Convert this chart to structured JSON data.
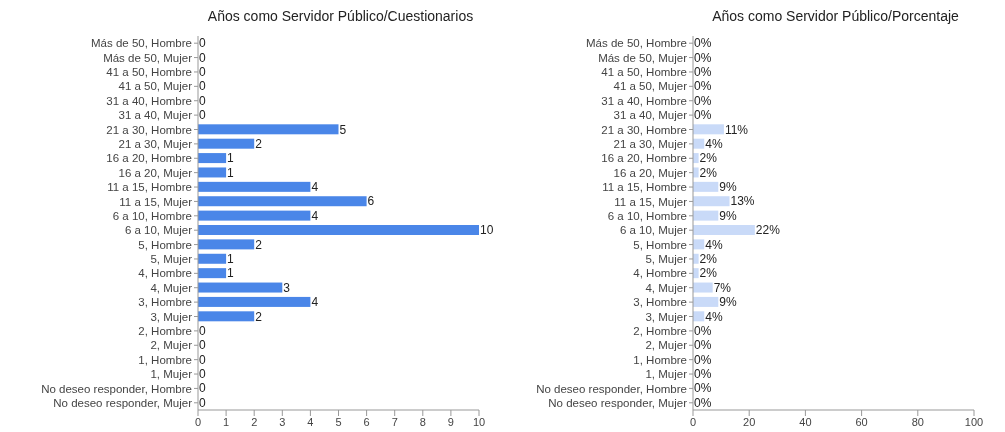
{
  "chart_data": [
    {
      "type": "bar",
      "orientation": "horizontal",
      "title": "Años como Servidor Público/Cuestionarios",
      "categories": [
        "Más de 50, Hombre",
        "Más de 50, Mujer",
        "41 a 50, Hombre",
        "41 a 50, Mujer",
        "31 a 40, Hombre",
        "31 a 40, Mujer",
        "21 a 30, Hombre",
        "21 a 30, Mujer",
        "16 a 20, Hombre",
        "16 a 20, Mujer",
        "11 a 15, Hombre",
        "11 a 15, Mujer",
        "6 a 10, Hombre",
        "6 a 10, Mujer",
        "5, Hombre",
        "5, Mujer",
        "4, Hombre",
        "4, Mujer",
        "3, Hombre",
        "3, Mujer",
        "2, Hombre",
        "2, Mujer",
        "1, Hombre",
        "1, Mujer",
        "No deseo responder, Hombre",
        "No deseo responder, Mujer"
      ],
      "values": [
        0,
        0,
        0,
        0,
        0,
        0,
        5,
        2,
        1,
        1,
        4,
        6,
        4,
        10,
        2,
        1,
        1,
        3,
        4,
        2,
        0,
        0,
        0,
        0,
        0,
        0
      ],
      "color": "#4a86e8",
      "xlim": [
        0,
        10
      ],
      "xticks": [
        0,
        1,
        2,
        3,
        4,
        5,
        6,
        7,
        8,
        9,
        10
      ],
      "grid": false,
      "legend": false,
      "data_labels": true
    },
    {
      "type": "bar",
      "orientation": "horizontal",
      "title": "Años como Servidor Público/Porcentaje",
      "categories": [
        "Más de 50, Hombre",
        "Más de 50, Mujer",
        "41 a 50, Hombre",
        "41 a 50, Mujer",
        "31 a 40, Hombre",
        "31 a 40, Mujer",
        "21 a 30, Hombre",
        "21 a 30, Mujer",
        "16 a 20, Hombre",
        "16 a 20, Mujer",
        "11 a 15, Hombre",
        "11 a 15, Mujer",
        "6 a 10, Hombre",
        "6 a 10, Mujer",
        "5, Hombre",
        "5, Mujer",
        "4, Hombre",
        "4, Mujer",
        "3, Hombre",
        "3, Mujer",
        "2, Hombre",
        "2, Mujer",
        "1, Hombre",
        "1, Mujer",
        "No deseo responder, Hombre",
        "No deseo responder, Mujer"
      ],
      "values": [
        0,
        0,
        0,
        0,
        0,
        0,
        11,
        4,
        2,
        2,
        9,
        13,
        9,
        22,
        4,
        2,
        2,
        7,
        9,
        4,
        0,
        0,
        0,
        0,
        0,
        0
      ],
      "value_labels": [
        "0%",
        "0%",
        "0%",
        "0%",
        "0%",
        "0%",
        "11%",
        "4%",
        "2%",
        "2%",
        "9%",
        "13%",
        "9%",
        "22%",
        "4%",
        "2%",
        "2%",
        "7%",
        "9%",
        "4%",
        "0%",
        "0%",
        "0%",
        "0%",
        "0%",
        "0%"
      ],
      "color": "#c9daf8",
      "xlim": [
        0,
        100
      ],
      "xticks": [
        0,
        20,
        40,
        60,
        80,
        100
      ],
      "grid": false,
      "legend": false
    }
  ]
}
